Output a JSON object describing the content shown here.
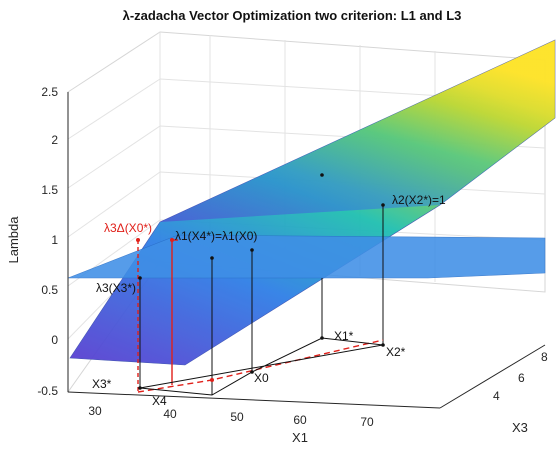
{
  "chart_data": {
    "type": "surface",
    "title": "λ-zadacha Vector Optimization two criterion: L1 and L3",
    "xlabel": "X1",
    "ylabel": "X3",
    "zlabel": "Lambda",
    "xlim": [
      25,
      77
    ],
    "ylim": [
      2.5,
      8.5
    ],
    "zlim": [
      -0.5,
      2.5
    ],
    "xticks": [
      "30",
      "40",
      "50",
      "60",
      "70"
    ],
    "yticks": [
      "4",
      "6",
      "8"
    ],
    "zticks": [
      "-0.5",
      "0",
      "0.5",
      "1",
      "1.5",
      "2",
      "2.5"
    ],
    "grid": true,
    "colormap": "parula",
    "series": [
      {
        "surface": "plane",
        "lambda": 0.6
      },
      {
        "surface": "lambda(X1,X3)",
        "lambda_range": [
          -0.3,
          2.55
        ]
      }
    ],
    "points": [
      {
        "label": "X3*",
        "x1": 35,
        "x3": 3.0,
        "lambda_label": "λ3(X3*)",
        "lambda": 0.6
      },
      {
        "label": "X4",
        "x1": 37,
        "x3": 3.2
      },
      {
        "label": "X0",
        "x1": 47,
        "x3": 3.6,
        "lambda_label": "λ1(X4*)=λ1(X0)",
        "lambda": 0.85
      },
      {
        "label": "X1*",
        "x1": 62,
        "x3": 7.0
      },
      {
        "label": "X2*",
        "x1": 70,
        "x3": 6.5,
        "lambda_label": "λ2(X2*)=1",
        "lambda": 1.0
      }
    ],
    "annotations": [
      {
        "text": "λ3Δ(X0*)",
        "color": "#e0201a"
      },
      {
        "text": "λ1(X4*)=λ1(X0)"
      },
      {
        "text": "λ2(X2*)=1"
      },
      {
        "text": "λ3(X3*)"
      },
      {
        "text": "X1*"
      },
      {
        "text": "X2*"
      },
      {
        "text": "X3*"
      },
      {
        "text": "X4"
      },
      {
        "text": "X0"
      }
    ],
    "colors": {
      "plane": "#3f8fe6",
      "line_red": "#e0201a",
      "axis": "#262626",
      "grid": "#e3e3e3"
    }
  }
}
